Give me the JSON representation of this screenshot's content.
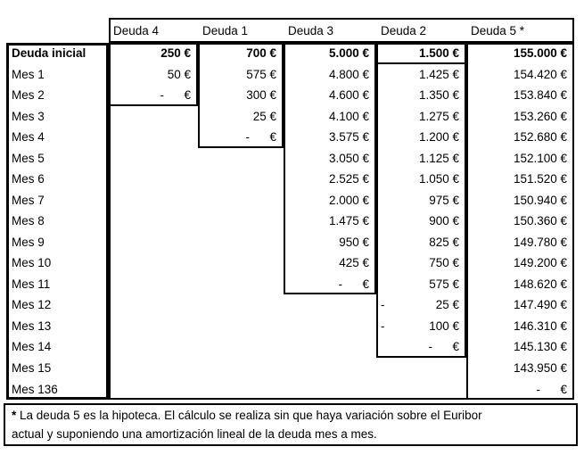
{
  "table": {
    "columns": [
      "Deuda 4",
      "Deuda 1",
      "Deuda 3",
      "Deuda 2",
      "Deuda 5 *"
    ],
    "rows": [
      {
        "label": "Deuda inicial",
        "bold": true,
        "values": [
          "250 €",
          "700 €",
          "5.000 €",
          "1.500 €",
          "155.000 €"
        ],
        "neg": [
          "",
          "",
          "",
          "",
          ""
        ]
      },
      {
        "label": "Mes 1",
        "bold": false,
        "values": [
          "50 €",
          "575 €",
          "4.800 €",
          "1.425 €",
          "154.420 €"
        ],
        "neg": [
          "",
          "",
          "",
          "",
          ""
        ]
      },
      {
        "label": "Mes 2",
        "bold": false,
        "values": [
          "-      €",
          "300 €",
          "4.600 €",
          "1.350 €",
          "153.840 €"
        ],
        "neg": [
          "",
          "",
          "",
          "",
          ""
        ]
      },
      {
        "label": "Mes 3",
        "bold": false,
        "values": [
          "",
          "25 €",
          "4.100 €",
          "1.275 €",
          "153.260 €"
        ],
        "neg": [
          "",
          "",
          "",
          "",
          ""
        ]
      },
      {
        "label": "Mes 4",
        "bold": false,
        "values": [
          "",
          "-      €",
          "3.575 €",
          "1.200 €",
          "152.680 €"
        ],
        "neg": [
          "",
          "",
          "",
          "",
          ""
        ]
      },
      {
        "label": "Mes 5",
        "bold": false,
        "values": [
          "",
          "",
          "3.050 €",
          "1.125 €",
          "152.100 €"
        ],
        "neg": [
          "",
          "",
          "",
          "",
          ""
        ]
      },
      {
        "label": "Mes 6",
        "bold": false,
        "values": [
          "",
          "",
          "2.525 €",
          "1.050 €",
          "151.520 €"
        ],
        "neg": [
          "",
          "",
          "",
          "",
          ""
        ]
      },
      {
        "label": "Mes 7",
        "bold": false,
        "values": [
          "",
          "",
          "2.000 €",
          "975 €",
          "150.940 €"
        ],
        "neg": [
          "",
          "",
          "",
          "",
          ""
        ]
      },
      {
        "label": "Mes 8",
        "bold": false,
        "values": [
          "",
          "",
          "1.475 €",
          "900 €",
          "150.360 €"
        ],
        "neg": [
          "",
          "",
          "",
          "",
          ""
        ]
      },
      {
        "label": "Mes 9",
        "bold": false,
        "values": [
          "",
          "",
          "950 €",
          "825 €",
          "149.780 €"
        ],
        "neg": [
          "",
          "",
          "",
          "",
          ""
        ]
      },
      {
        "label": "Mes 10",
        "bold": false,
        "values": [
          "",
          "",
          "425 €",
          "750 €",
          "149.200 €"
        ],
        "neg": [
          "",
          "",
          "",
          "",
          ""
        ]
      },
      {
        "label": "Mes 11",
        "bold": false,
        "values": [
          "",
          "",
          "-      €",
          "575 €",
          "148.620 €"
        ],
        "neg": [
          "",
          "",
          "",
          "",
          ""
        ]
      },
      {
        "label": "Mes 12",
        "bold": false,
        "values": [
          "",
          "",
          "",
          "25 €",
          "147.490 €"
        ],
        "neg": [
          "",
          "",
          "",
          "-",
          ""
        ]
      },
      {
        "label": "Mes 13",
        "bold": false,
        "values": [
          "",
          "",
          "",
          "100 €",
          "146.310 €"
        ],
        "neg": [
          "",
          "",
          "",
          "-",
          ""
        ]
      },
      {
        "label": "Mes 14",
        "bold": false,
        "values": [
          "",
          "",
          "",
          "-      €",
          "145.130 €"
        ],
        "neg": [
          "",
          "",
          "",
          "",
          ""
        ]
      },
      {
        "label": "Mes 15",
        "bold": false,
        "values": [
          "",
          "",
          "",
          "",
          "143.950 €"
        ],
        "neg": [
          "",
          "",
          "",
          "",
          ""
        ]
      },
      {
        "label": "Mes 136",
        "bold": false,
        "values": [
          "",
          "",
          "",
          "",
          "-      €"
        ],
        "neg": [
          "",
          "",
          "",
          "",
          ""
        ]
      }
    ]
  },
  "footnote": {
    "marker": "*",
    "line1": "La deuda 5 es la hipoteca. El cálculo se realiza sin que haya variación sobre el Euribor",
    "line2": "actual y suponiendo una amortización lineal de la deuda mes a mes."
  },
  "chart_data": {
    "type": "table",
    "title": "",
    "columns": [
      "Deuda 4",
      "Deuda 1",
      "Deuda 3",
      "Deuda 2",
      "Deuda 5"
    ],
    "row_labels": [
      "Deuda inicial",
      "Mes 1",
      "Mes 2",
      "Mes 3",
      "Mes 4",
      "Mes 5",
      "Mes 6",
      "Mes 7",
      "Mes 8",
      "Mes 9",
      "Mes 10",
      "Mes 11",
      "Mes 12",
      "Mes 13",
      "Mes 14",
      "Mes 15",
      "Mes 136"
    ],
    "values_eur": [
      [
        250,
        700,
        5000,
        1500,
        155000
      ],
      [
        50,
        575,
        4800,
        1425,
        154420
      ],
      [
        0,
        300,
        4600,
        1350,
        153840
      ],
      [
        null,
        25,
        4100,
        1275,
        153260
      ],
      [
        null,
        0,
        3575,
        1200,
        152680
      ],
      [
        null,
        null,
        3050,
        1125,
        152100
      ],
      [
        null,
        null,
        2525,
        1050,
        151520
      ],
      [
        null,
        null,
        2000,
        975,
        150940
      ],
      [
        null,
        null,
        1475,
        900,
        150360
      ],
      [
        null,
        null,
        950,
        825,
        149780
      ],
      [
        null,
        null,
        425,
        750,
        149200
      ],
      [
        null,
        null,
        0,
        575,
        148620
      ],
      [
        null,
        null,
        null,
        -25,
        147490
      ],
      [
        null,
        null,
        null,
        -100,
        146310
      ],
      [
        null,
        null,
        null,
        0,
        145130
      ],
      [
        null,
        null,
        null,
        null,
        143950
      ],
      [
        null,
        null,
        null,
        null,
        0
      ]
    ],
    "footnote": "* La deuda 5 es la hipoteca. El cálculo se realiza sin que haya variación sobre el Euribor actual y suponiendo una amortización lineal de la deuda mes a mes.",
    "layout": {
      "grid": false,
      "border_color": "#000000",
      "background": "#ffffff"
    }
  }
}
